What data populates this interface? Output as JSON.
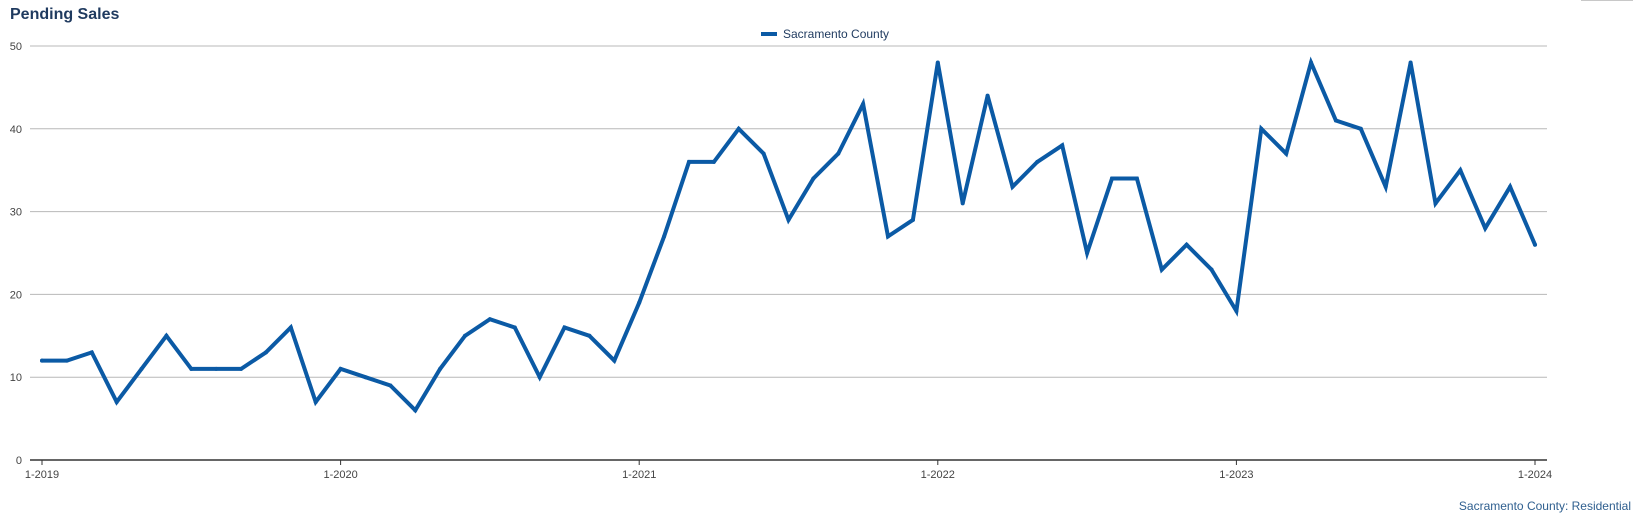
{
  "chart_data": {
    "type": "line",
    "title": "Pending Sales",
    "xlabel": "",
    "ylabel": "",
    "ylim": [
      0,
      50
    ],
    "y_ticks": [
      0,
      10,
      20,
      30,
      40,
      50
    ],
    "x_tick_labels": [
      "1-2019",
      "1-2020",
      "1-2021",
      "1-2022",
      "1-2023",
      "1-2024"
    ],
    "x_tick_indices": [
      0,
      12,
      24,
      36,
      48,
      60
    ],
    "grid": true,
    "legend_position": "top-center",
    "series": [
      {
        "name": "Sacramento County",
        "color": "#0b5aa5",
        "x_start": "1-2019",
        "frequency": "monthly",
        "values": [
          12,
          12,
          13,
          7,
          11,
          15,
          11,
          11,
          11,
          13,
          16,
          7,
          11,
          10,
          9,
          6,
          11,
          15,
          17,
          16,
          10,
          16,
          15,
          12,
          19,
          27,
          36,
          36,
          40,
          37,
          29,
          34,
          37,
          43,
          27,
          29,
          48,
          31,
          44,
          33,
          36,
          38,
          25,
          34,
          34,
          23,
          26,
          23,
          18,
          40,
          37,
          48,
          41,
          40,
          33,
          48,
          31,
          35,
          28,
          33,
          26
        ]
      }
    ],
    "footnote": "Sacramento County: Residential"
  }
}
